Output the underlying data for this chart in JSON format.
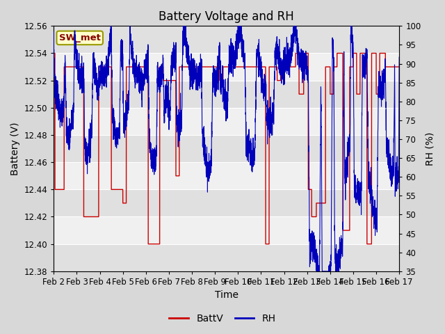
{
  "title": "Battery Voltage and RH",
  "xlabel": "Time",
  "ylabel_left": "Battery (V)",
  "ylabel_right": "RH (%)",
  "ylim_left": [
    12.38,
    12.56
  ],
  "ylim_right": [
    35,
    100
  ],
  "yticks_left": [
    12.38,
    12.4,
    12.42,
    12.44,
    12.46,
    12.48,
    12.5,
    12.52,
    12.54,
    12.56
  ],
  "yticks_right": [
    35,
    40,
    45,
    50,
    55,
    60,
    65,
    70,
    75,
    80,
    85,
    90,
    95,
    100
  ],
  "xtick_labels": [
    "Feb 2",
    "Feb 3",
    "Feb 4",
    "Feb 5",
    "Feb 6",
    "Feb 7",
    "Feb 8",
    "Feb 9",
    "Feb 10",
    "Feb 11",
    "Feb 12",
    "Feb 13",
    "Feb 14",
    "Feb 15",
    "Feb 16",
    "Feb 17"
  ],
  "legend_label1": "BattV",
  "legend_label2": "RH",
  "color_battv": "#cc0000",
  "color_rh": "#0000bb",
  "annotation_text": "SW_met",
  "annotation_bg": "#ffffcc",
  "annotation_border": "#999900",
  "background_color": "#d8d8d8",
  "plot_bg_light": "#f0f0f0",
  "plot_bg_dark": "#e0e0e0",
  "grid_color": "#ffffff",
  "title_fontsize": 12,
  "axis_fontsize": 10,
  "tick_fontsize": 8.5,
  "legend_fontsize": 10
}
